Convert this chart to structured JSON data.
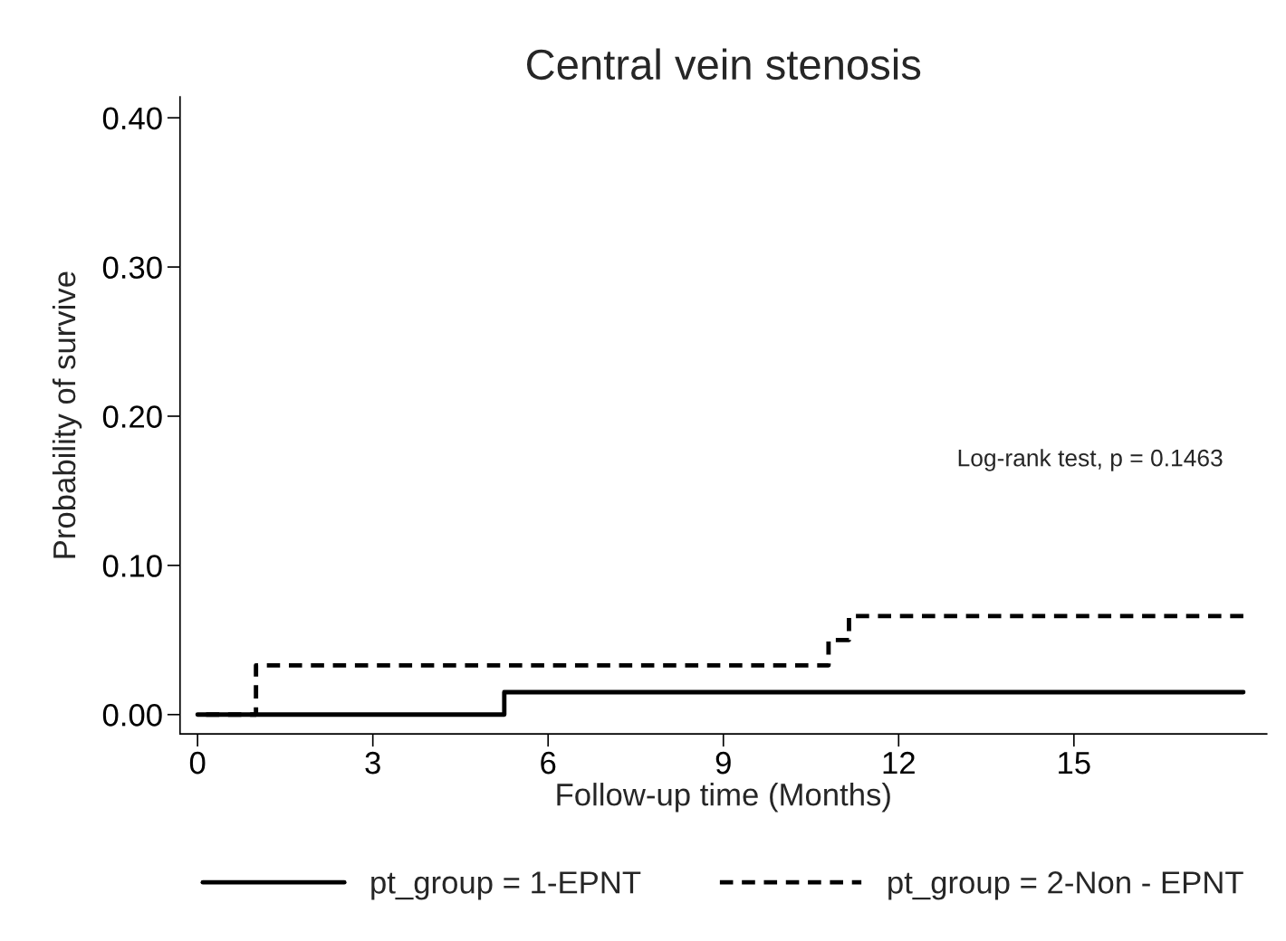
{
  "chart_data": {
    "type": "step",
    "title": "Central vein stenosis",
    "xlabel": "Follow-up time (Months)",
    "ylabel": "Probability of survive",
    "series": [
      {
        "name": "pt_group = 1-EPNT",
        "color": "#000000",
        "line_style": "solid",
        "x": [
          0,
          5.25,
          17.9
        ],
        "values": [
          0,
          0.015,
          0.015
        ]
      },
      {
        "name": "pt_group = 2-Non - EPNT",
        "color": "#000000",
        "line_style": "dashed",
        "x": [
          0,
          1.0,
          10.8,
          11.15,
          17.9
        ],
        "values": [
          0,
          0.033,
          0.05,
          0.066,
          0.066
        ]
      }
    ],
    "xlim": [
      -0.3,
      18.3
    ],
    "ylim": [
      -0.013,
      0.414
    ],
    "xticks": [
      0,
      3,
      6,
      9,
      12,
      15
    ],
    "yticks": [
      {
        "value": 0,
        "label": "0.00"
      },
      {
        "value": 0.1,
        "label": "0.10"
      },
      {
        "value": 0.2,
        "label": "0.20"
      },
      {
        "value": 0.3,
        "label": "0.30"
      },
      {
        "value": 0.4,
        "label": "0.40"
      }
    ],
    "annotations": [
      "Log-rank test, p = 0.1463"
    ],
    "grid": false,
    "legend": "bottom"
  }
}
